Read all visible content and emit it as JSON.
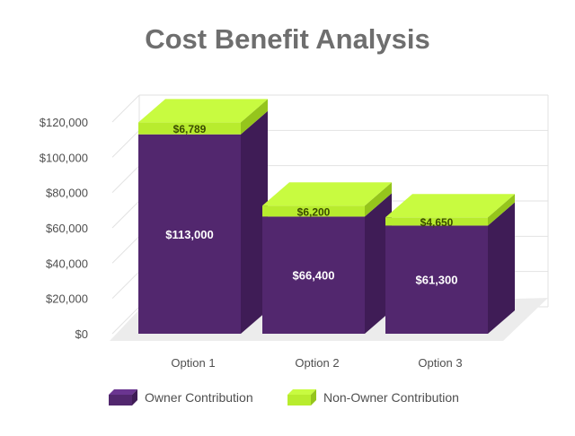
{
  "chart_data": {
    "type": "bar",
    "stacked": true,
    "style": "3d",
    "title": "Cost Benefit Analysis",
    "categories": [
      "Option 1",
      "Option 2",
      "Option 3"
    ],
    "series": [
      {
        "name": "Owner Contribution",
        "values": [
          113000,
          66400,
          61300
        ],
        "labels": [
          "$113,000",
          "$66,400",
          "$61,300"
        ],
        "color": "#52276e"
      },
      {
        "name": "Non-Owner Contribution",
        "values": [
          6789,
          6200,
          4650
        ],
        "labels": [
          "$6,789",
          "$6,200",
          "$4,650"
        ],
        "color": "#c2f23c"
      }
    ],
    "ylim": [
      0,
      120000
    ],
    "yticks": [
      "$0",
      "$20,000",
      "$40,000",
      "$60,000",
      "$80,000",
      "$100,000",
      "$120,000"
    ],
    "grid": true,
    "legend_position": "bottom"
  },
  "colors": {
    "owner_top": "#52276e",
    "owner_side": "#3f1c56",
    "nonowner_front": "#b8ec2e",
    "nonowner_top": "#c8fb40",
    "nonowner_side": "#95c51c",
    "grid": "#e2e2e2",
    "floor": "#ececec",
    "title": "#6e6e6e",
    "axis_text": "#4f4f4f"
  }
}
